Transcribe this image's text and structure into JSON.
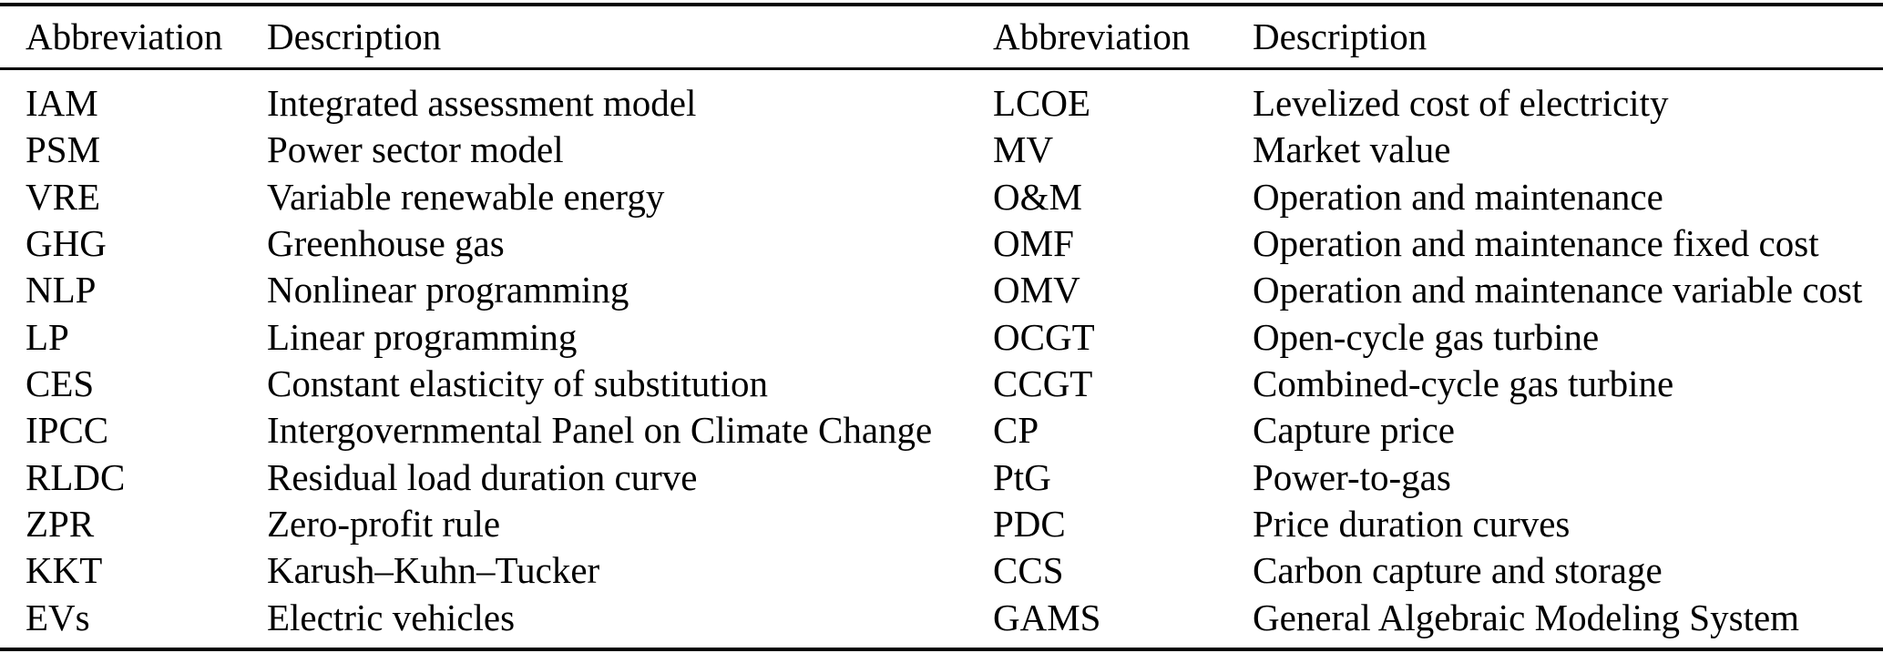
{
  "colors": {
    "text": "#000000",
    "background": "#ffffff",
    "rule": "#000000"
  },
  "table": {
    "left_header": {
      "abbreviation": "Abbreviation",
      "description": "Description"
    },
    "right_header": {
      "abbreviation": "Abbreviation",
      "description": "Description"
    },
    "left_rows": [
      {
        "abbr": "IAM",
        "desc": "Integrated assessment model"
      },
      {
        "abbr": "PSM",
        "desc": "Power sector model"
      },
      {
        "abbr": "VRE",
        "desc": "Variable renewable energy"
      },
      {
        "abbr": "GHG",
        "desc": "Greenhouse gas"
      },
      {
        "abbr": "NLP",
        "desc": "Nonlinear programming"
      },
      {
        "abbr": "LP",
        "desc": "Linear programming"
      },
      {
        "abbr": "CES",
        "desc": "Constant elasticity of substitution"
      },
      {
        "abbr": "IPCC",
        "desc": "Intergovernmental Panel on Climate Change"
      },
      {
        "abbr": "RLDC",
        "desc": "Residual load duration curve"
      },
      {
        "abbr": "ZPR",
        "desc": "Zero-profit rule"
      },
      {
        "abbr": "KKT",
        "desc": "Karush–Kuhn–Tucker"
      },
      {
        "abbr": "EVs",
        "desc": "Electric vehicles"
      }
    ],
    "right_rows": [
      {
        "abbr": "LCOE",
        "desc": "Levelized cost of electricity"
      },
      {
        "abbr": "MV",
        "desc": "Market value"
      },
      {
        "abbr": "O&M",
        "desc": "Operation and maintenance"
      },
      {
        "abbr": "OMF",
        "desc": "Operation and maintenance fixed cost"
      },
      {
        "abbr": "OMV",
        "desc": "Operation and maintenance variable cost"
      },
      {
        "abbr": "OCGT",
        "desc": "Open-cycle gas turbine"
      },
      {
        "abbr": "CCGT",
        "desc": "Combined-cycle gas turbine"
      },
      {
        "abbr": "CP",
        "desc": "Capture price"
      },
      {
        "abbr": "PtG",
        "desc": "Power-to-gas"
      },
      {
        "abbr": "PDC",
        "desc": "Price duration curves"
      },
      {
        "abbr": "CCS",
        "desc": "Carbon capture and storage"
      },
      {
        "abbr": "GAMS",
        "desc": "General Algebraic Modeling System"
      }
    ]
  }
}
